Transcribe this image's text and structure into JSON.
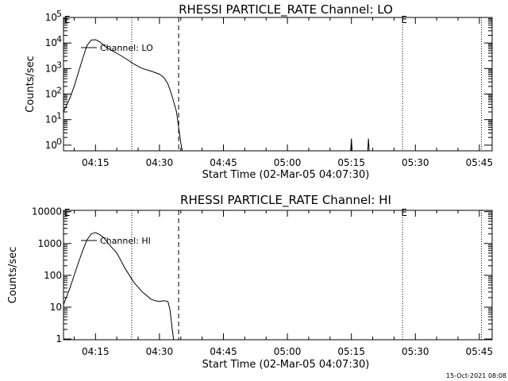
{
  "footer": {
    "timestamp": "15-Oct-2021 08:08"
  },
  "chart_data": [
    {
      "type": "line",
      "title": "RHESSI PARTICLE_RATE Channel: LO",
      "xlabel": "Start Time (02-Mar-05 04:07:30)",
      "ylabel": "Counts/sec",
      "yscale": "log",
      "ylim": [
        0.6,
        100000
      ],
      "xlim": [
        "04:07:30",
        "05:48:00"
      ],
      "x_ticks": [
        "04:15",
        "04:30",
        "04:45",
        "05:00",
        "05:15",
        "05:30",
        "05:45"
      ],
      "y_ticks": [
        {
          "value": 1,
          "label": "10",
          "exp": "0"
        },
        {
          "value": 10,
          "label": "10",
          "exp": "1"
        },
        {
          "value": 100,
          "label": "10",
          "exp": "2"
        },
        {
          "value": 1000,
          "label": "10",
          "exp": "3"
        },
        {
          "value": 10000,
          "label": "10",
          "exp": "4"
        },
        {
          "value": 100000,
          "label": "10",
          "exp": "5"
        }
      ],
      "legend": {
        "position": "top-left",
        "entries": [
          "Channel: LO"
        ]
      },
      "event_markers": [
        {
          "time": "04:08:00",
          "label": "E"
        },
        {
          "time": "05:27:00",
          "label": "E"
        }
      ],
      "dotted_lines": [
        "04:23:30",
        "05:27:00",
        "05:45:30"
      ],
      "dashed_lines": [
        "04:34:30"
      ],
      "grid": false,
      "series": [
        {
          "name": "Channel: LO",
          "x": [
            "04:07:30",
            "04:09:00",
            "04:10:00",
            "04:11:00",
            "04:12:00",
            "04:13:00",
            "04:14:00",
            "04:15:00",
            "04:16:00",
            "04:17:00",
            "04:18:00",
            "04:20:00",
            "04:22:00",
            "04:24:00",
            "04:26:00",
            "04:28:00",
            "04:30:00",
            "04:31:00",
            "04:32:00",
            "04:33:00",
            "04:34:00",
            "04:34:30",
            "04:35:00",
            "04:35:20"
          ],
          "y": [
            20,
            70,
            200,
            700,
            2500,
            8000,
            13000,
            13500,
            11000,
            8000,
            6000,
            4000,
            2500,
            1500,
            1000,
            800,
            600,
            450,
            250,
            80,
            20,
            5,
            1.2,
            0.6
          ]
        },
        {
          "name": "",
          "x": [
            "05:14:50",
            "05:15:00",
            "05:15:10",
            "05:18:50",
            "05:19:00",
            "05:19:10"
          ],
          "y": [
            0.6,
            1.8,
            0.6,
            0.6,
            1.8,
            0.6
          ]
        }
      ]
    },
    {
      "type": "line",
      "title": "RHESSI PARTICLE_RATE Channel: HI",
      "xlabel": "Start Time (02-Mar-05 04:07:30)",
      "ylabel": "Counts/sec",
      "yscale": "log",
      "ylim": [
        0.95,
        11000
      ],
      "xlim": [
        "04:07:30",
        "05:48:00"
      ],
      "x_ticks": [
        "04:15",
        "04:30",
        "04:45",
        "05:00",
        "05:15",
        "05:30",
        "05:45"
      ],
      "y_ticks": [
        {
          "value": 1,
          "label": "1"
        },
        {
          "value": 10,
          "label": "10"
        },
        {
          "value": 100,
          "label": "100"
        },
        {
          "value": 1000,
          "label": "1000"
        },
        {
          "value": 10000,
          "label": "10000"
        }
      ],
      "legend": {
        "position": "top-left",
        "entries": [
          "Channel: HI"
        ]
      },
      "event_markers": [
        {
          "time": "04:08:00",
          "label": "E"
        },
        {
          "time": "05:27:00",
          "label": "E"
        }
      ],
      "dotted_lines": [
        "04:23:30",
        "05:27:00",
        "05:45:30"
      ],
      "dashed_lines": [
        "04:34:30"
      ],
      "grid": false,
      "series": [
        {
          "name": "Channel: HI",
          "x": [
            "04:07:30",
            "04:09:00",
            "04:10:00",
            "04:11:00",
            "04:12:00",
            "04:13:00",
            "04:14:00",
            "04:15:00",
            "04:16:00",
            "04:17:00",
            "04:18:00",
            "04:20:00",
            "04:22:00",
            "04:24:00",
            "04:26:00",
            "04:28:00",
            "04:29:00",
            "04:30:00",
            "04:31:00",
            "04:32:00",
            "04:32:30",
            "04:33:00",
            "04:33:20"
          ],
          "y": [
            12,
            40,
            100,
            250,
            600,
            1300,
            2000,
            2200,
            1900,
            1500,
            1000,
            500,
            160,
            60,
            30,
            18,
            16,
            15,
            16,
            15,
            8,
            2,
            0.95
          ]
        }
      ]
    }
  ]
}
